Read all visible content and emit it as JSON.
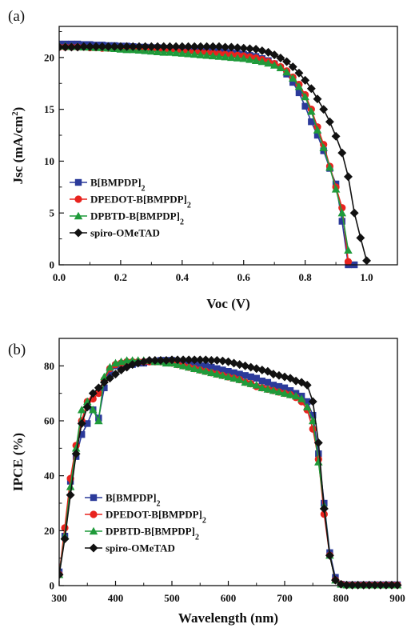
{
  "chart_data": [
    {
      "type": "line",
      "panel_label": "(a)",
      "xlabel": "Voc (V)",
      "ylabel": "Jsc (mA/cm²)",
      "ylabel_parts": [
        "Jsc (mA/cm",
        "2",
        ")"
      ],
      "xlim": [
        0.0,
        1.1
      ],
      "ylim": [
        0,
        23
      ],
      "xticks": [
        0.0,
        0.2,
        0.4,
        0.6,
        0.8,
        1.0
      ],
      "xtick_labels": [
        "0.0",
        "0.2",
        "0.4",
        "0.6",
        "0.8",
        "1.0"
      ],
      "yticks": [
        0,
        5,
        10,
        15,
        20
      ],
      "ytick_labels": [
        "0",
        "5",
        "10",
        "15",
        "20"
      ],
      "grid": false,
      "legend_position": "lower-left",
      "legend": [
        {
          "label": "B[BMPDP]",
          "sub": "2",
          "series": 0
        },
        {
          "label": "DPEDOT-B[BMPDP]",
          "sub": "2",
          "series": 1
        },
        {
          "label": "DPBTD-B[BMPDP]",
          "sub": "2",
          "series": 2
        },
        {
          "label": "spiro-OMeTAD",
          "sub": "",
          "series": 3
        }
      ],
      "series": [
        {
          "color": "#2b3a9a",
          "marker": "square",
          "x": [
            0.0,
            0.02,
            0.04,
            0.06,
            0.08,
            0.1,
            0.12,
            0.14,
            0.16,
            0.18,
            0.2,
            0.22,
            0.24,
            0.26,
            0.28,
            0.3,
            0.32,
            0.34,
            0.36,
            0.38,
            0.4,
            0.42,
            0.44,
            0.46,
            0.48,
            0.5,
            0.52,
            0.54,
            0.56,
            0.58,
            0.6,
            0.62,
            0.64,
            0.66,
            0.68,
            0.7,
            0.72,
            0.74,
            0.76,
            0.78,
            0.8,
            0.82,
            0.84,
            0.86,
            0.88,
            0.9,
            0.92,
            0.94,
            0.96
          ],
          "y": [
            21.3,
            21.3,
            21.3,
            21.3,
            21.25,
            21.25,
            21.2,
            21.2,
            21.15,
            21.15,
            21.1,
            21.1,
            21.05,
            21.0,
            21.0,
            20.95,
            20.95,
            20.9,
            20.85,
            20.85,
            20.8,
            20.75,
            20.7,
            20.7,
            20.65,
            20.6,
            20.55,
            20.5,
            20.45,
            20.4,
            20.3,
            20.2,
            20.1,
            19.9,
            19.7,
            19.4,
            19.0,
            18.4,
            17.6,
            16.6,
            15.3,
            13.8,
            12.5,
            11.0,
            9.3,
            7.8,
            4.2,
            0.0,
            0.0
          ]
        },
        {
          "color": "#e8231e",
          "marker": "circle",
          "x": [
            0.0,
            0.02,
            0.04,
            0.06,
            0.08,
            0.1,
            0.12,
            0.14,
            0.16,
            0.18,
            0.2,
            0.22,
            0.24,
            0.26,
            0.28,
            0.3,
            0.32,
            0.34,
            0.36,
            0.38,
            0.4,
            0.42,
            0.44,
            0.46,
            0.48,
            0.5,
            0.52,
            0.54,
            0.56,
            0.58,
            0.6,
            0.62,
            0.64,
            0.66,
            0.68,
            0.7,
            0.72,
            0.74,
            0.76,
            0.78,
            0.8,
            0.82,
            0.84,
            0.86,
            0.88,
            0.9,
            0.92,
            0.94
          ],
          "y": [
            21.0,
            21.0,
            21.0,
            21.0,
            21.0,
            20.95,
            20.95,
            20.9,
            20.9,
            20.9,
            20.85,
            20.85,
            20.8,
            20.8,
            20.75,
            20.75,
            20.7,
            20.7,
            20.65,
            20.65,
            20.6,
            20.55,
            20.5,
            20.5,
            20.45,
            20.4,
            20.35,
            20.3,
            20.25,
            20.2,
            20.15,
            20.05,
            19.95,
            19.8,
            19.6,
            19.4,
            19.1,
            18.7,
            18.1,
            17.4,
            16.4,
            15.0,
            13.3,
            11.6,
            9.5,
            7.5,
            5.5,
            0.3
          ]
        },
        {
          "color": "#1f9a3a",
          "marker": "triangle",
          "x": [
            0.0,
            0.02,
            0.04,
            0.06,
            0.08,
            0.1,
            0.12,
            0.14,
            0.16,
            0.18,
            0.2,
            0.22,
            0.24,
            0.26,
            0.28,
            0.3,
            0.32,
            0.34,
            0.36,
            0.38,
            0.4,
            0.42,
            0.44,
            0.46,
            0.48,
            0.5,
            0.52,
            0.54,
            0.56,
            0.58,
            0.6,
            0.62,
            0.64,
            0.66,
            0.68,
            0.7,
            0.72,
            0.74,
            0.76,
            0.78,
            0.8,
            0.82,
            0.84,
            0.86,
            0.88,
            0.9,
            0.92,
            0.94
          ],
          "y": [
            21.1,
            21.1,
            21.05,
            21.05,
            21.0,
            21.0,
            20.95,
            20.95,
            20.9,
            20.85,
            20.8,
            20.75,
            20.75,
            20.7,
            20.65,
            20.6,
            20.55,
            20.5,
            20.5,
            20.45,
            20.4,
            20.35,
            20.3,
            20.25,
            20.2,
            20.15,
            20.1,
            20.05,
            20.0,
            19.95,
            19.9,
            19.8,
            19.7,
            19.6,
            19.45,
            19.25,
            19.0,
            18.6,
            18.0,
            17.2,
            16.2,
            14.8,
            13.0,
            11.3,
            9.4,
            7.3,
            5.0,
            1.4
          ]
        },
        {
          "color": "#111111",
          "marker": "diamond",
          "x": [
            0.0,
            0.02,
            0.04,
            0.06,
            0.08,
            0.1,
            0.12,
            0.14,
            0.16,
            0.18,
            0.2,
            0.22,
            0.24,
            0.26,
            0.28,
            0.3,
            0.32,
            0.34,
            0.36,
            0.38,
            0.4,
            0.42,
            0.44,
            0.46,
            0.48,
            0.5,
            0.52,
            0.54,
            0.56,
            0.58,
            0.6,
            0.62,
            0.64,
            0.66,
            0.68,
            0.7,
            0.72,
            0.74,
            0.76,
            0.78,
            0.8,
            0.82,
            0.84,
            0.86,
            0.88,
            0.9,
            0.92,
            0.94,
            0.96,
            0.98,
            1.0
          ],
          "y": [
            21.0,
            21.0,
            21.0,
            21.0,
            21.05,
            21.05,
            21.05,
            21.05,
            21.05,
            21.05,
            21.05,
            21.05,
            21.05,
            21.05,
            21.05,
            21.05,
            21.05,
            21.05,
            21.05,
            21.05,
            21.05,
            21.05,
            21.05,
            21.05,
            21.05,
            21.05,
            21.05,
            21.0,
            21.0,
            20.95,
            20.9,
            20.85,
            20.8,
            20.65,
            20.5,
            20.25,
            19.95,
            19.6,
            19.1,
            18.5,
            17.8,
            17.0,
            16.0,
            15.0,
            13.8,
            12.4,
            10.8,
            8.5,
            5.0,
            2.6,
            0.4
          ]
        }
      ]
    },
    {
      "type": "line",
      "panel_label": "(b)",
      "xlabel": "Wavelength (nm)",
      "ylabel": "IPCE (%)",
      "xlim": [
        300,
        900
      ],
      "ylim": [
        0,
        90
      ],
      "xticks": [
        300,
        400,
        500,
        600,
        700,
        800,
        900
      ],
      "xtick_labels": [
        "300",
        "400",
        "500",
        "600",
        "700",
        "800",
        "900"
      ],
      "yticks": [
        0,
        20,
        40,
        60,
        80
      ],
      "ytick_labels": [
        "0",
        "20",
        "40",
        "60",
        "80"
      ],
      "grid": false,
      "legend_position": "lower-left",
      "legend": [
        {
          "label": "B[BMPDP]",
          "sub": "2",
          "series": 0
        },
        {
          "label": "DPEDOT-B[BMPDP]",
          "sub": "2",
          "series": 1
        },
        {
          "label": "DPBTD-B[BMPDP]",
          "sub": "2",
          "series": 2
        },
        {
          "label": "spiro-OMeTAD",
          "sub": "",
          "series": 3
        }
      ],
      "series": [
        {
          "color": "#2b3a9a",
          "marker": "square",
          "x": [
            300,
            310,
            320,
            330,
            340,
            350,
            360,
            370,
            380,
            390,
            400,
            410,
            420,
            430,
            440,
            450,
            460,
            470,
            480,
            490,
            500,
            510,
            520,
            530,
            540,
            550,
            560,
            570,
            580,
            590,
            600,
            610,
            620,
            630,
            640,
            650,
            660,
            670,
            680,
            690,
            700,
            710,
            720,
            730,
            740,
            750,
            760,
            770,
            780,
            790,
            800,
            810,
            820,
            830,
            840,
            850,
            860,
            870,
            880,
            890,
            900
          ],
          "y": [
            5,
            18,
            38,
            47,
            55,
            59,
            64,
            61,
            72,
            77,
            80,
            80.5,
            80.5,
            80.5,
            81,
            81,
            81.5,
            81.5,
            82,
            82,
            82,
            81.5,
            81.5,
            81,
            80.5,
            80,
            80,
            79.5,
            79,
            78.5,
            78,
            77.5,
            77,
            76.5,
            76,
            75.5,
            74.5,
            74,
            73,
            72.5,
            72,
            71,
            70,
            69,
            67,
            62,
            48,
            30,
            12,
            3,
            0.5,
            0.3,
            0.3,
            0.3,
            0.3,
            0.3,
            0.3,
            0.3,
            0.3,
            0.3,
            0.3
          ]
        },
        {
          "color": "#e8231e",
          "marker": "circle",
          "x": [
            300,
            310,
            320,
            330,
            340,
            350,
            360,
            370,
            380,
            390,
            400,
            410,
            420,
            430,
            440,
            450,
            460,
            470,
            480,
            490,
            500,
            510,
            520,
            530,
            540,
            550,
            560,
            570,
            580,
            590,
            600,
            610,
            620,
            630,
            640,
            650,
            660,
            670,
            680,
            690,
            700,
            710,
            720,
            730,
            740,
            750,
            760,
            770,
            780,
            790,
            800,
            810,
            820,
            830,
            840,
            850,
            860,
            870,
            880,
            890,
            900
          ],
          "y": [
            4,
            21,
            39,
            51,
            60,
            67,
            68,
            70,
            75,
            79,
            80.5,
            81,
            81.5,
            81.5,
            81.5,
            81.5,
            81.5,
            81.5,
            81.5,
            81.5,
            81,
            80.5,
            80,
            79.5,
            79,
            78.5,
            78,
            77.5,
            77,
            76.5,
            76,
            75.5,
            75,
            74,
            73.5,
            72.5,
            72,
            71.5,
            71,
            70.5,
            70,
            69.5,
            68.5,
            67,
            64,
            57,
            46,
            26,
            11,
            2,
            0.5,
            0.2,
            0.2,
            0.2,
            0.2,
            0.2,
            0.2,
            0.2,
            0.2,
            0.2,
            0.2
          ]
        },
        {
          "color": "#1f9a3a",
          "marker": "triangle",
          "x": [
            300,
            310,
            320,
            330,
            340,
            350,
            360,
            370,
            380,
            390,
            400,
            410,
            420,
            430,
            440,
            450,
            460,
            470,
            480,
            490,
            500,
            510,
            520,
            530,
            540,
            550,
            560,
            570,
            580,
            590,
            600,
            610,
            620,
            630,
            640,
            650,
            660,
            670,
            680,
            690,
            700,
            710,
            720,
            730,
            740,
            750,
            760,
            770,
            780,
            790,
            800,
            810,
            820,
            830,
            840,
            850,
            860,
            870,
            880,
            890,
            900
          ],
          "y": [
            4,
            18,
            36,
            50,
            64,
            67,
            64,
            60,
            76,
            79.5,
            81,
            81.5,
            82,
            82,
            82,
            82,
            82,
            81.5,
            81.5,
            81,
            81,
            80.5,
            80,
            79.5,
            79,
            78.5,
            78,
            77.5,
            77,
            76.5,
            76,
            75.5,
            75,
            74,
            73.5,
            73,
            72,
            71.5,
            71,
            70.5,
            70,
            69.5,
            69,
            68,
            65,
            60,
            45,
            29,
            11,
            2,
            0.5,
            0.2,
            0.2,
            0.2,
            0.2,
            0.2,
            0.2,
            0.2,
            0.2,
            0.2,
            0.2
          ]
        },
        {
          "color": "#111111",
          "marker": "diamond",
          "x": [
            300,
            310,
            320,
            330,
            340,
            350,
            360,
            370,
            380,
            390,
            400,
            410,
            420,
            430,
            440,
            450,
            460,
            470,
            480,
            490,
            500,
            510,
            520,
            530,
            540,
            550,
            560,
            570,
            580,
            590,
            600,
            610,
            620,
            630,
            640,
            650,
            660,
            670,
            680,
            690,
            700,
            710,
            720,
            730,
            740,
            750,
            760,
            770,
            780,
            790,
            800,
            810,
            820,
            830,
            840,
            850,
            860,
            870,
            880,
            890,
            900
          ],
          "y": [
            4,
            17,
            33,
            48,
            59,
            65,
            70,
            72,
            74,
            75.5,
            77,
            78.5,
            79.5,
            80.5,
            81,
            81.5,
            82,
            82,
            82,
            82,
            82.2,
            82.2,
            82.2,
            82.2,
            82.2,
            82.2,
            82.2,
            82,
            82,
            81.8,
            81.5,
            81,
            80.5,
            80,
            79.5,
            79,
            78.5,
            78,
            77,
            76.5,
            76,
            75.5,
            74.5,
            74,
            73,
            67,
            52,
            28,
            11,
            2,
            0.5,
            0.2,
            0.2,
            0.2,
            0.2,
            0.2,
            0.2,
            0.2,
            0.2,
            0.2,
            0.2
          ]
        }
      ]
    }
  ]
}
